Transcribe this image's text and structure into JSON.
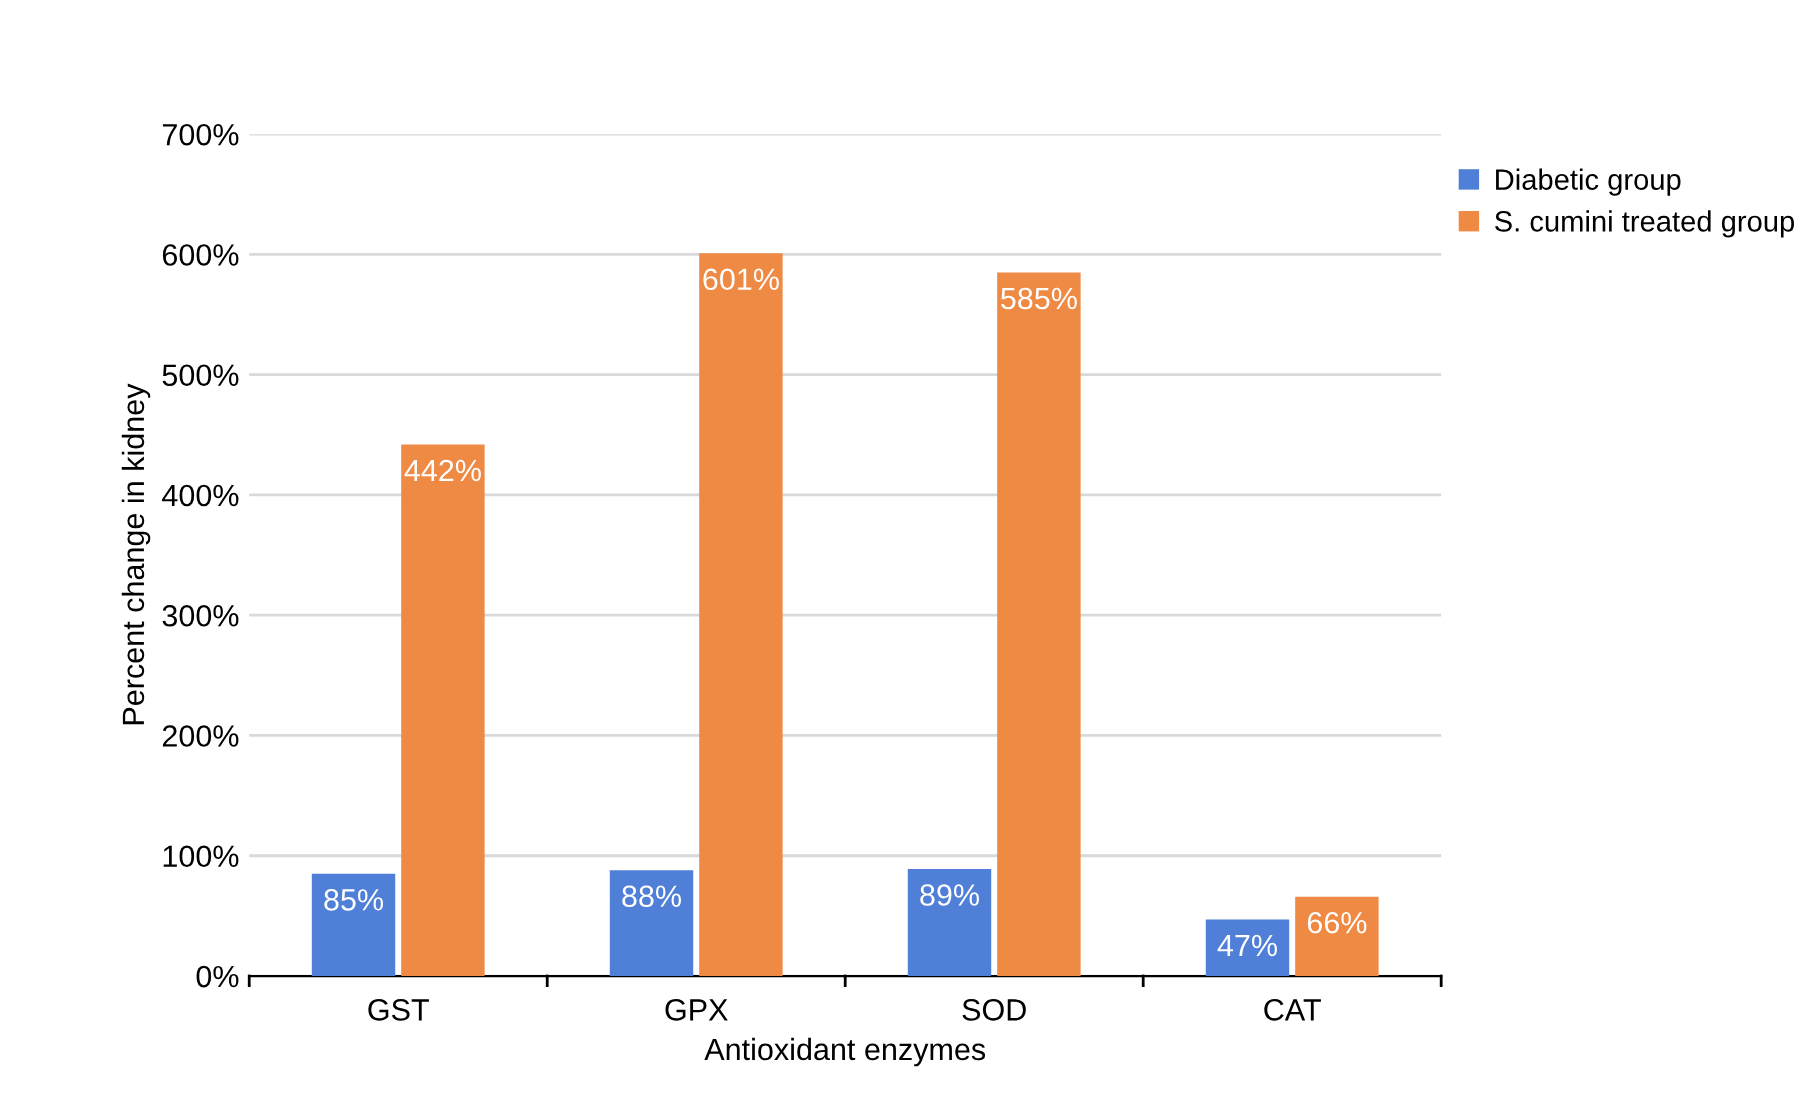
{
  "chart_data": {
    "type": "bar",
    "xlabel": "Antioxidant enzymes",
    "ylabel": "Percent change in kidney",
    "categories": [
      "GST",
      "GPX",
      "SOD",
      "CAT"
    ],
    "series": [
      {
        "name": "Diabetic group",
        "color": "#4f7fd6",
        "values": [
          85,
          88,
          89,
          47
        ],
        "value_labels": [
          "85%",
          "88%",
          "89%",
          "47%"
        ]
      },
      {
        "name": "S. cumini treated group",
        "color": "#ef8a45",
        "values": [
          442,
          601,
          585,
          66
        ],
        "value_labels": [
          "442%",
          "601%",
          "585%",
          "66%"
        ]
      }
    ],
    "ylim": [
      0,
      700
    ],
    "yticks": [
      {
        "value": 0,
        "label": "0%"
      },
      {
        "value": 100,
        "label": "100%"
      },
      {
        "value": 200,
        "label": "200%"
      },
      {
        "value": 300,
        "label": "300%"
      },
      {
        "value": 400,
        "label": "400%"
      },
      {
        "value": 500,
        "label": "500%"
      },
      {
        "value": 600,
        "label": "600%"
      },
      {
        "value": 700,
        "label": "700%"
      }
    ],
    "grid": "y",
    "legend": "top right"
  }
}
